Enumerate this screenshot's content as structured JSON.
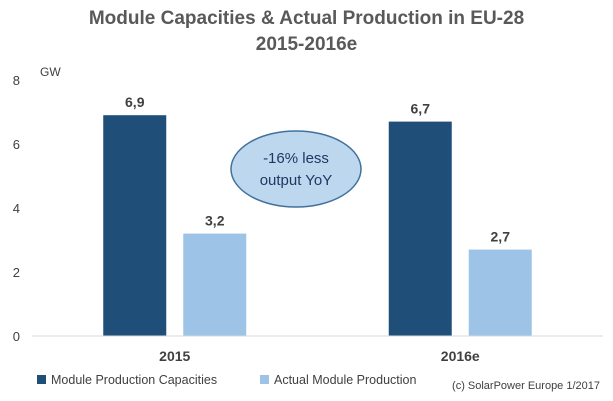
{
  "chart_data": {
    "type": "bar",
    "title": "Module Capacities & Actual Production in EU-28",
    "subtitle": "2015-2016e",
    "ylabel": "GW",
    "xlabel": "",
    "categories": [
      "2015",
      "2016e"
    ],
    "series": [
      {
        "name": "Module Production Capacities",
        "values": [
          6.9,
          6.7
        ],
        "labels": [
          "6,9",
          "6,7"
        ],
        "color": "#1f4e79"
      },
      {
        "name": "Actual Module Production",
        "values": [
          3.2,
          2.7
        ],
        "labels": [
          "3,2",
          "2,7"
        ],
        "color": "#9dc3e6"
      }
    ],
    "ylim": [
      0,
      8
    ],
    "yticks": [
      0,
      2,
      4,
      6,
      8
    ],
    "grid": false,
    "legend_position": "bottom-left",
    "annotation": {
      "lines": [
        "-16% less",
        "output YoY"
      ],
      "fill": "#bdd7ee",
      "stroke": "#41719c"
    },
    "source_note": "(c) SolarPower Europe 1/2017"
  }
}
